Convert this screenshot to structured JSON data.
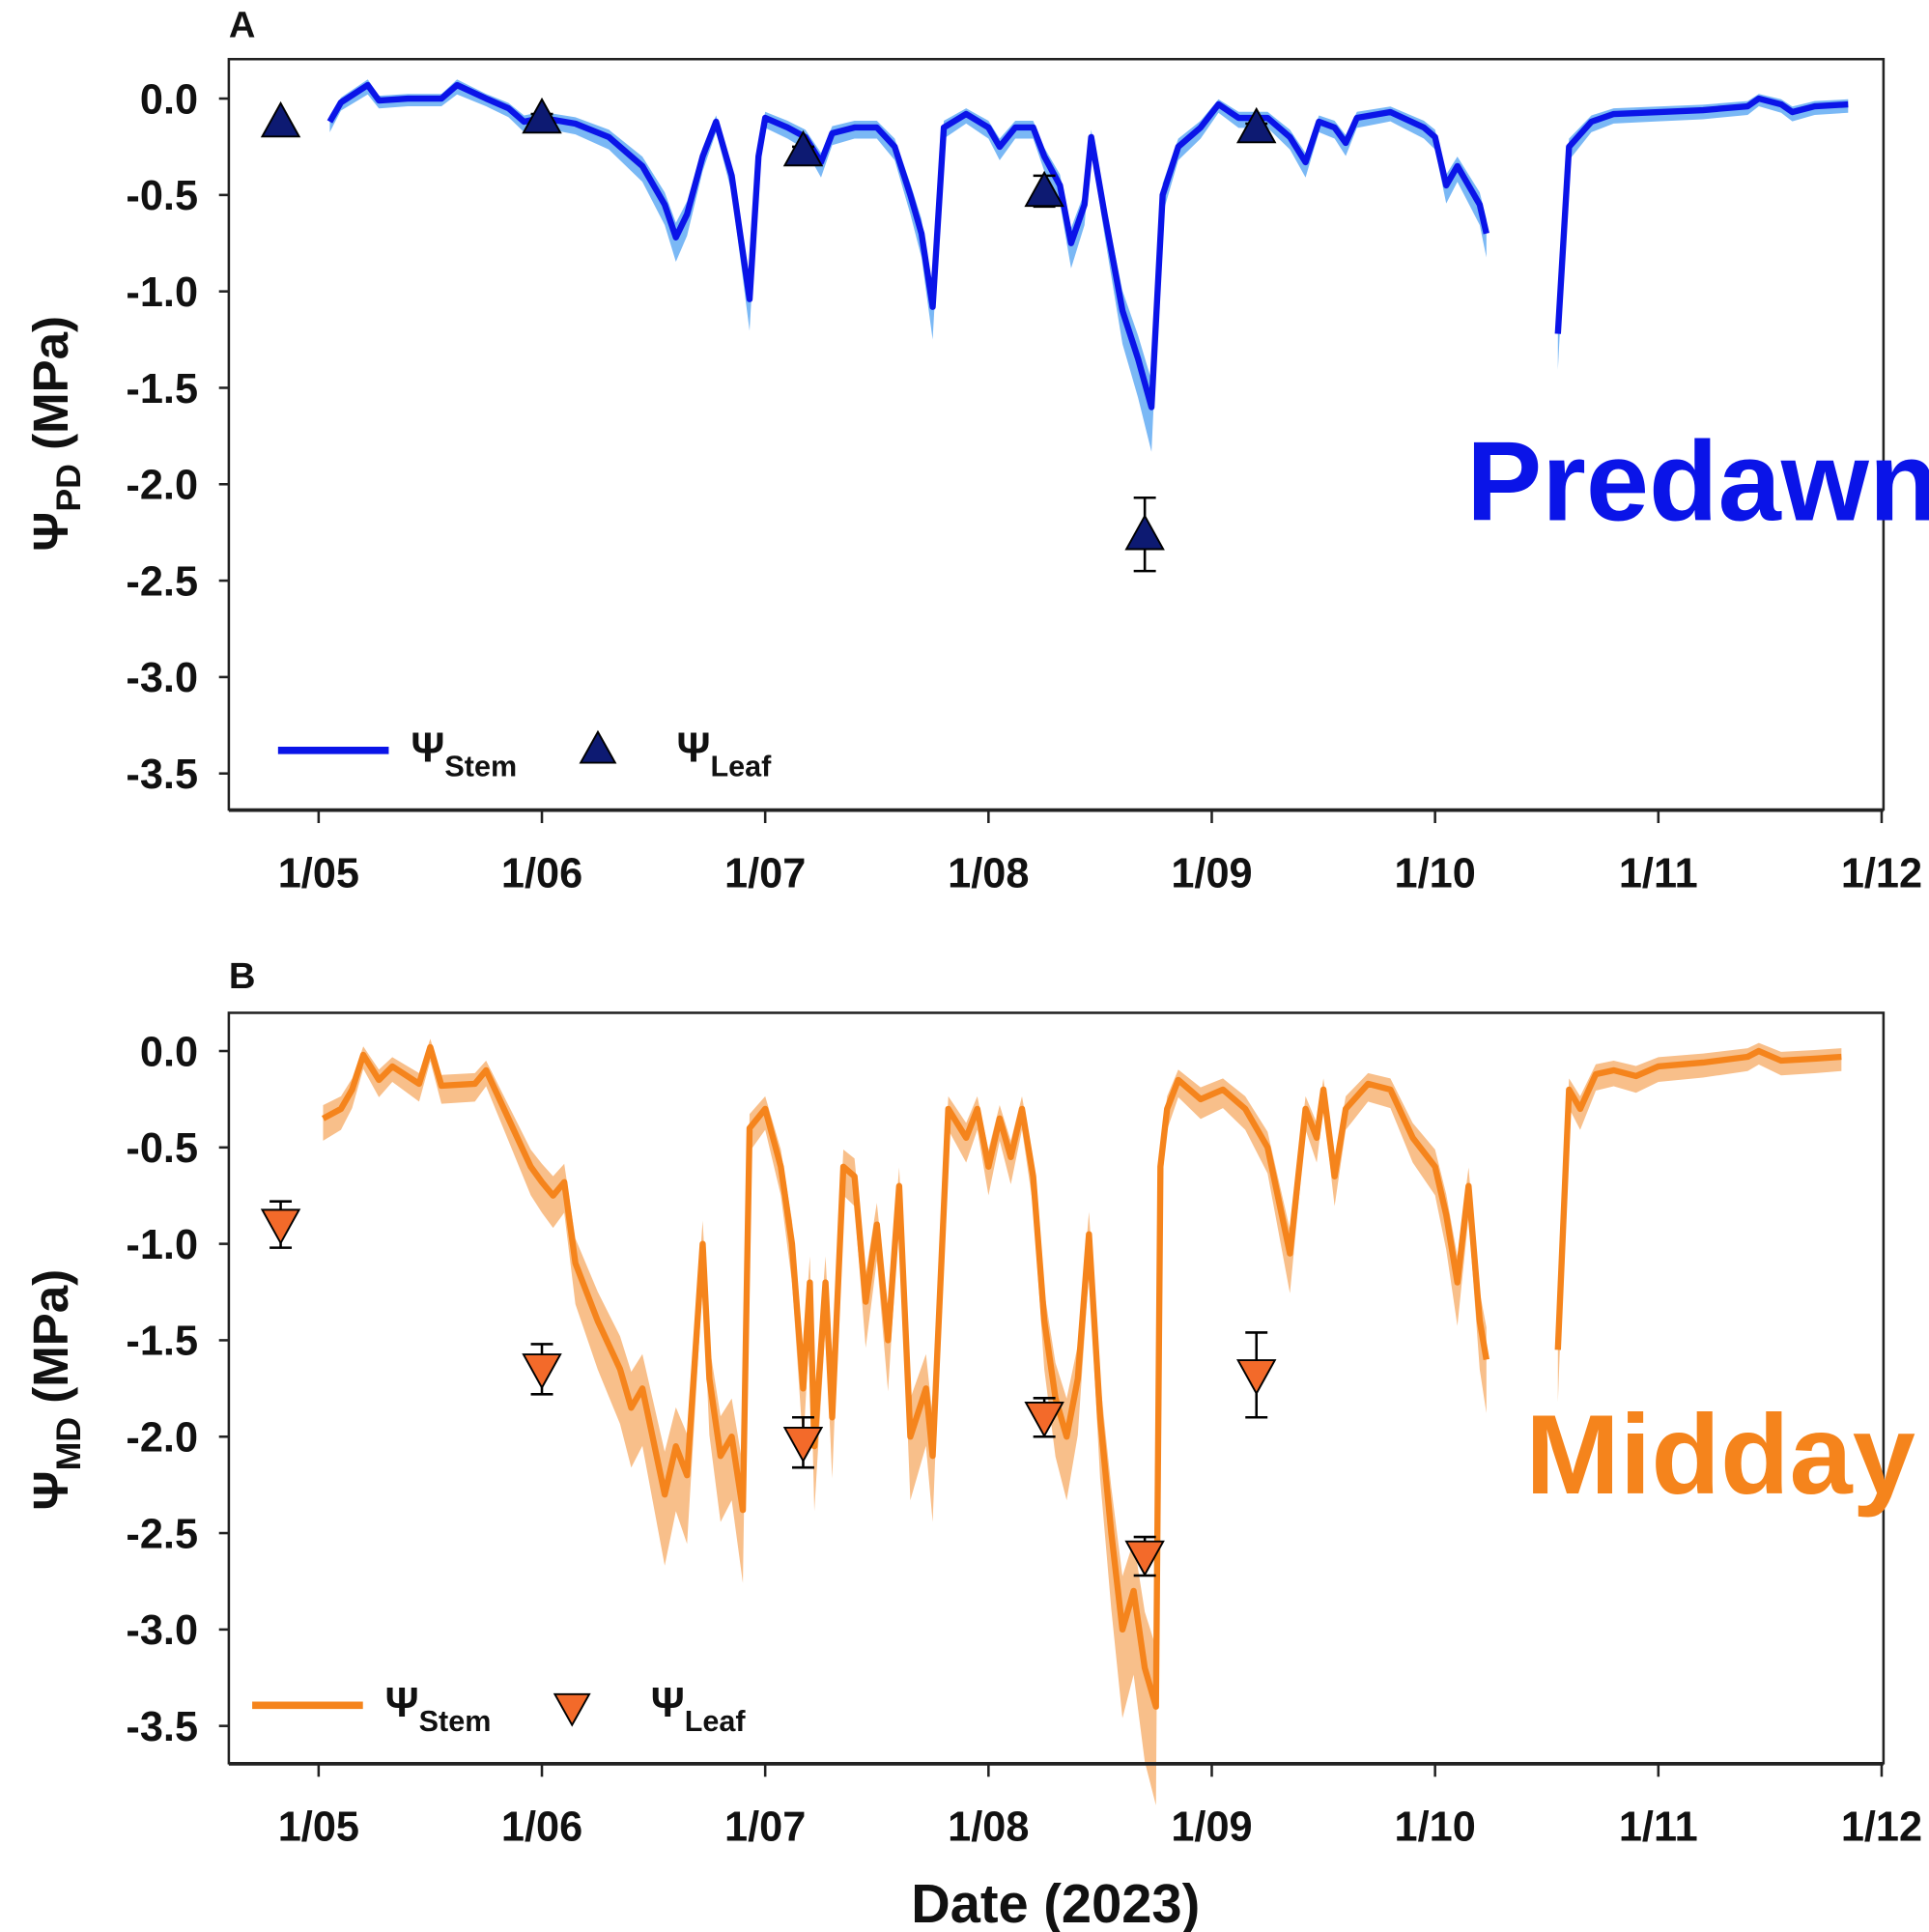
{
  "chart_data": [
    {
      "type": "line",
      "panel": "A",
      "annotation": "Predawn",
      "ylabel": {
        "symbol": "Ψ",
        "sub": "PD",
        "unit": " (MPa)"
      },
      "xlabel": "",
      "ylim": [
        -3.7,
        0.2
      ],
      "xlim": [
        4.6,
        12.0
      ],
      "yticks": [
        0.0,
        -0.5,
        -1.0,
        -1.5,
        -2.0,
        -2.5,
        -3.0,
        -3.5
      ],
      "ytick_labels": [
        "0.0",
        "-0.5",
        "-1.0",
        "-1.5",
        "-2.0",
        "-2.5",
        "-3.0",
        "-3.5"
      ],
      "xticks": [
        5,
        6,
        7,
        8,
        9,
        10,
        11,
        12
      ],
      "xtick_labels": [
        "1/05",
        "1/06",
        "1/07",
        "1/08",
        "1/09",
        "1/10",
        "1/11",
        "1/12"
      ],
      "colors": {
        "line": "#0a14e8",
        "band": "#7ab8f5",
        "marker": "#0d1a72"
      },
      "band_spread": {
        "base": 0.04,
        "rel": 0.12
      },
      "legend": {
        "stem_symbol": "Ψ",
        "stem_sub": "Stem",
        "leaf_symbol": "Ψ",
        "leaf_sub": "Leaf",
        "position": "bottom-left"
      },
      "stem_series": [
        [
          [
            5.05,
            -0.12
          ],
          [
            5.1,
            -0.02
          ],
          [
            5.22,
            0.07
          ],
          [
            5.27,
            -0.01
          ],
          [
            5.4,
            0.0
          ],
          [
            5.55,
            0.0
          ],
          [
            5.62,
            0.07
          ],
          [
            5.75,
            0.0
          ],
          [
            5.85,
            -0.05
          ],
          [
            5.92,
            -0.12
          ],
          [
            6.0,
            -0.1
          ],
          [
            6.15,
            -0.13
          ],
          [
            6.3,
            -0.2
          ],
          [
            6.45,
            -0.35
          ],
          [
            6.55,
            -0.55
          ],
          [
            6.6,
            -0.72
          ],
          [
            6.65,
            -0.6
          ],
          [
            6.72,
            -0.3
          ],
          [
            6.78,
            -0.12
          ],
          [
            6.85,
            -0.4
          ],
          [
            6.93,
            -1.04
          ],
          [
            6.97,
            -0.3
          ],
          [
            7.0,
            -0.1
          ],
          [
            7.1,
            -0.15
          ],
          [
            7.18,
            -0.2
          ],
          [
            7.25,
            -0.33
          ],
          [
            7.3,
            -0.18
          ],
          [
            7.4,
            -0.15
          ],
          [
            7.5,
            -0.15
          ],
          [
            7.58,
            -0.25
          ],
          [
            7.65,
            -0.5
          ],
          [
            7.7,
            -0.7
          ],
          [
            7.75,
            -1.08
          ],
          [
            7.8,
            -0.15
          ],
          [
            7.9,
            -0.08
          ],
          [
            8.0,
            -0.15
          ],
          [
            8.05,
            -0.25
          ],
          [
            8.12,
            -0.15
          ],
          [
            8.2,
            -0.15
          ],
          [
            8.25,
            -0.3
          ],
          [
            8.32,
            -0.45
          ],
          [
            8.37,
            -0.75
          ],
          [
            8.43,
            -0.55
          ],
          [
            8.46,
            -0.2
          ],
          [
            8.52,
            -0.6
          ],
          [
            8.6,
            -1.1
          ],
          [
            8.67,
            -1.35
          ],
          [
            8.73,
            -1.6
          ],
          [
            8.78,
            -0.5
          ],
          [
            8.85,
            -0.25
          ],
          [
            8.95,
            -0.15
          ],
          [
            9.03,
            -0.03
          ],
          [
            9.12,
            -0.1
          ],
          [
            9.25,
            -0.1
          ],
          [
            9.35,
            -0.2
          ],
          [
            9.42,
            -0.33
          ],
          [
            9.48,
            -0.12
          ],
          [
            9.55,
            -0.15
          ],
          [
            9.6,
            -0.23
          ],
          [
            9.65,
            -0.1
          ],
          [
            9.8,
            -0.07
          ],
          [
            9.95,
            -0.15
          ],
          [
            10.0,
            -0.2
          ],
          [
            10.05,
            -0.45
          ],
          [
            10.1,
            -0.35
          ],
          [
            10.2,
            -0.55
          ],
          [
            10.23,
            -0.7
          ]
        ],
        [
          [
            10.55,
            -1.22
          ],
          [
            10.6,
            -0.25
          ],
          [
            10.7,
            -0.12
          ],
          [
            10.8,
            -0.08
          ],
          [
            11.0,
            -0.07
          ],
          [
            11.2,
            -0.06
          ],
          [
            11.4,
            -0.04
          ],
          [
            11.45,
            0.0
          ],
          [
            11.55,
            -0.03
          ],
          [
            11.6,
            -0.07
          ],
          [
            11.7,
            -0.04
          ],
          [
            11.85,
            -0.03
          ]
        ]
      ],
      "leaf_points": [
        {
          "x": 4.83,
          "y": -0.12,
          "err": 0.0
        },
        {
          "x": 6.0,
          "y": -0.1,
          "err": 0.02
        },
        {
          "x": 7.17,
          "y": -0.27,
          "err": 0.02
        },
        {
          "x": 8.25,
          "y": -0.48,
          "err": 0.08
        },
        {
          "x": 8.7,
          "y": -2.26,
          "err": 0.19
        },
        {
          "x": 9.2,
          "y": -0.15,
          "err": 0.02
        }
      ],
      "marker": "triangle-up"
    },
    {
      "type": "line",
      "panel": "B",
      "annotation": "Midday",
      "ylabel": {
        "symbol": "Ψ",
        "sub": "MD",
        "unit": " (MPa)"
      },
      "xlabel": "Date (2023)",
      "ylim": [
        -3.7,
        0.2
      ],
      "xlim": [
        4.6,
        12.0
      ],
      "yticks": [
        0.0,
        -0.5,
        -1.0,
        -1.5,
        -2.0,
        -2.5,
        -3.0,
        -3.5
      ],
      "ytick_labels": [
        "0.0",
        "-0.5",
        "-1.0",
        "-1.5",
        "-2.0",
        "-2.5",
        "-3.0",
        "-3.5"
      ],
      "xticks": [
        5,
        6,
        7,
        8,
        9,
        10,
        11,
        12
      ],
      "xtick_labels": [
        "1/05",
        "1/06",
        "1/07",
        "1/08",
        "1/09",
        "1/10",
        "1/11",
        "1/12"
      ],
      "colors": {
        "line": "#f5841c",
        "band": "#f8bf8a",
        "marker": "#f36a2a"
      },
      "band_spread": {
        "base": 0.07,
        "rel": 0.13
      },
      "legend": {
        "stem_symbol": "Ψ",
        "stem_sub": "Stem",
        "leaf_symbol": "Ψ",
        "leaf_sub": "Leaf",
        "position": "bottom-left"
      },
      "stem_series": [
        [
          [
            5.02,
            -0.35
          ],
          [
            5.1,
            -0.3
          ],
          [
            5.15,
            -0.2
          ],
          [
            5.2,
            -0.02
          ],
          [
            5.27,
            -0.15
          ],
          [
            5.33,
            -0.08
          ],
          [
            5.45,
            -0.17
          ],
          [
            5.5,
            0.02
          ],
          [
            5.55,
            -0.18
          ],
          [
            5.7,
            -0.17
          ],
          [
            5.75,
            -0.1
          ],
          [
            5.85,
            -0.35
          ],
          [
            5.95,
            -0.6
          ],
          [
            6.0,
            -0.68
          ],
          [
            6.05,
            -0.75
          ],
          [
            6.1,
            -0.68
          ],
          [
            6.15,
            -1.1
          ],
          [
            6.25,
            -1.4
          ],
          [
            6.35,
            -1.65
          ],
          [
            6.4,
            -1.85
          ],
          [
            6.45,
            -1.75
          ],
          [
            6.55,
            -2.3
          ],
          [
            6.6,
            -2.05
          ],
          [
            6.65,
            -2.2
          ],
          [
            6.72,
            -1.0
          ],
          [
            6.75,
            -1.7
          ],
          [
            6.8,
            -2.1
          ],
          [
            6.85,
            -2.0
          ],
          [
            6.9,
            -2.38
          ],
          [
            6.93,
            -0.4
          ],
          [
            7.0,
            -0.3
          ],
          [
            7.07,
            -0.6
          ],
          [
            7.12,
            -1.0
          ],
          [
            7.17,
            -1.75
          ],
          [
            7.2,
            -1.2
          ],
          [
            7.22,
            -2.05
          ],
          [
            7.27,
            -1.2
          ],
          [
            7.3,
            -1.9
          ],
          [
            7.35,
            -0.6
          ],
          [
            7.4,
            -0.65
          ],
          [
            7.45,
            -1.3
          ],
          [
            7.5,
            -0.9
          ],
          [
            7.55,
            -1.5
          ],
          [
            7.6,
            -0.7
          ],
          [
            7.65,
            -2.0
          ],
          [
            7.72,
            -1.75
          ],
          [
            7.75,
            -2.1
          ],
          [
            7.82,
            -0.3
          ],
          [
            7.9,
            -0.45
          ],
          [
            7.95,
            -0.3
          ],
          [
            8.0,
            -0.6
          ],
          [
            8.05,
            -0.35
          ],
          [
            8.1,
            -0.55
          ],
          [
            8.15,
            -0.3
          ],
          [
            8.2,
            -0.65
          ],
          [
            8.25,
            -1.4
          ],
          [
            8.3,
            -1.8
          ],
          [
            8.35,
            -2.0
          ],
          [
            8.4,
            -1.7
          ],
          [
            8.45,
            -0.95
          ],
          [
            8.5,
            -1.9
          ],
          [
            8.55,
            -2.5
          ],
          [
            8.6,
            -3.0
          ],
          [
            8.65,
            -2.8
          ],
          [
            8.7,
            -3.2
          ],
          [
            8.75,
            -3.4
          ],
          [
            8.77,
            -0.6
          ],
          [
            8.8,
            -0.3
          ],
          [
            8.85,
            -0.15
          ],
          [
            8.95,
            -0.25
          ],
          [
            9.05,
            -0.2
          ],
          [
            9.15,
            -0.3
          ],
          [
            9.25,
            -0.5
          ],
          [
            9.35,
            -1.05
          ],
          [
            9.42,
            -0.3
          ],
          [
            9.47,
            -0.45
          ],
          [
            9.5,
            -0.2
          ],
          [
            9.55,
            -0.65
          ],
          [
            9.6,
            -0.3
          ],
          [
            9.7,
            -0.17
          ],
          [
            9.8,
            -0.2
          ],
          [
            9.9,
            -0.45
          ],
          [
            10.0,
            -0.6
          ],
          [
            10.05,
            -0.85
          ],
          [
            10.1,
            -1.2
          ],
          [
            10.15,
            -0.7
          ],
          [
            10.2,
            -1.4
          ],
          [
            10.23,
            -1.6
          ]
        ],
        [
          [
            10.55,
            -1.55
          ],
          [
            10.6,
            -0.2
          ],
          [
            10.65,
            -0.3
          ],
          [
            10.72,
            -0.12
          ],
          [
            10.8,
            -0.1
          ],
          [
            10.9,
            -0.13
          ],
          [
            11.0,
            -0.08
          ],
          [
            11.2,
            -0.06
          ],
          [
            11.4,
            -0.03
          ],
          [
            11.45,
            0.0
          ],
          [
            11.55,
            -0.05
          ],
          [
            11.7,
            -0.04
          ],
          [
            11.82,
            -0.03
          ]
        ]
      ],
      "leaf_points": [
        {
          "x": 4.83,
          "y": -0.9,
          "err": 0.12
        },
        {
          "x": 6.0,
          "y": -1.65,
          "err": 0.13
        },
        {
          "x": 7.17,
          "y": -2.03,
          "err": 0.13
        },
        {
          "x": 8.25,
          "y": -1.9,
          "err": 0.1
        },
        {
          "x": 8.7,
          "y": -2.62,
          "err": 0.1
        },
        {
          "x": 9.2,
          "y": -1.68,
          "err": 0.22
        }
      ],
      "marker": "triangle-down"
    }
  ]
}
